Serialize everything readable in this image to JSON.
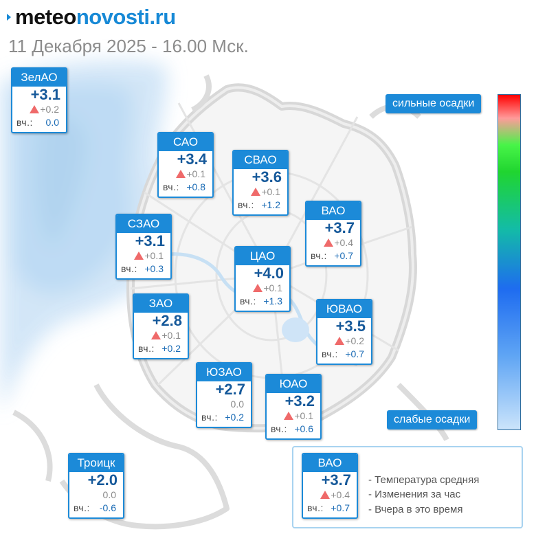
{
  "header": {
    "logo_part1": "meteo",
    "logo_part2": "novosti.ru",
    "date_line": "11 Декабря 2025 - 16.00 Мск."
  },
  "colors": {
    "card_blue": "#1c8ad8",
    "temp_text": "#16599a",
    "up_arrow": "#ef6a6a",
    "precip_light": "#cfe4f7"
  },
  "districts": [
    {
      "id": "zelao",
      "name": "ЗелАО",
      "temp": "+3.1",
      "change": "+0.2",
      "change_dir": "up",
      "yesterday_label": "вч.:",
      "yesterday": "0.0"
    },
    {
      "id": "sao",
      "name": "САО",
      "temp": "+3.4",
      "change": "+0.1",
      "change_dir": "up",
      "yesterday_label": "вч.:",
      "yesterday": "+0.8"
    },
    {
      "id": "svao",
      "name": "СВАО",
      "temp": "+3.6",
      "change": "+0.1",
      "change_dir": "up",
      "yesterday_label": "вч.:",
      "yesterday": "+1.2"
    },
    {
      "id": "szao",
      "name": "СЗАО",
      "temp": "+3.1",
      "change": "+0.1",
      "change_dir": "up",
      "yesterday_label": "вч.:",
      "yesterday": "+0.3"
    },
    {
      "id": "vao",
      "name": "ВАО",
      "temp": "+3.7",
      "change": "+0.4",
      "change_dir": "up",
      "yesterday_label": "вч.:",
      "yesterday": "+0.7"
    },
    {
      "id": "cao",
      "name": "ЦАО",
      "temp": "+4.0",
      "change": "+0.1",
      "change_dir": "up",
      "yesterday_label": "вч.:",
      "yesterday": "+1.3"
    },
    {
      "id": "zao",
      "name": "ЗАО",
      "temp": "+2.8",
      "change": "+0.1",
      "change_dir": "up",
      "yesterday_label": "вч.:",
      "yesterday": "+0.2"
    },
    {
      "id": "yuvao",
      "name": "ЮВАО",
      "temp": "+3.5",
      "change": "+0.2",
      "change_dir": "up",
      "yesterday_label": "вч.:",
      "yesterday": "+0.7"
    },
    {
      "id": "yuzao",
      "name": "ЮЗАО",
      "temp": "+2.7",
      "change": "0.0",
      "change_dir": "none",
      "yesterday_label": "вч.:",
      "yesterday": "+0.2"
    },
    {
      "id": "yuao",
      "name": "ЮАО",
      "temp": "+3.2",
      "change": "+0.1",
      "change_dir": "up",
      "yesterday_label": "вч.:",
      "yesterday": "+0.6"
    },
    {
      "id": "troitsk",
      "name": "Троицк",
      "temp": "+2.0",
      "change": "0.0",
      "change_dir": "none",
      "yesterday_label": "вч.:",
      "yesterday": "-0.6"
    }
  ],
  "precip_scale": {
    "top_label": "сильные осадки",
    "bottom_label": "слабые осадки"
  },
  "legend": {
    "sample": {
      "name": "ВАО",
      "temp": "+3.7",
      "change": "+0.4",
      "change_dir": "up",
      "yesterday_label": "вч.:",
      "yesterday": "+0.7"
    },
    "line_temp": "- Температура средняя",
    "line_change": "- Изменения за час",
    "line_yesterday": "- Вчера в это время"
  }
}
